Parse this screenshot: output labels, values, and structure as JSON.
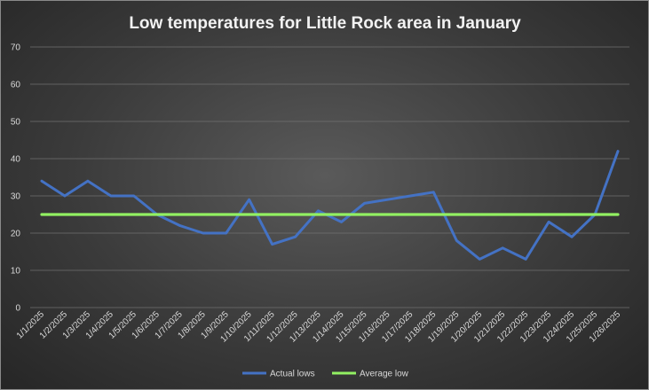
{
  "chart_data": {
    "type": "line",
    "title": "Low temperatures for Little Rock area in January",
    "xlabel": "",
    "ylabel": "",
    "ylim": [
      0,
      70
    ],
    "yticks": [
      0,
      10,
      20,
      30,
      40,
      50,
      60,
      70
    ],
    "grid": true,
    "legend": "bottom",
    "categories": [
      "1/1/2025",
      "1/2/2025",
      "1/3/2025",
      "1/4/2025",
      "1/5/2025",
      "1/6/2025",
      "1/7/2025",
      "1/8/2025",
      "1/9/2025",
      "1/10/2025",
      "1/11/2025",
      "1/12/2025",
      "1/13/2025",
      "1/14/2025",
      "1/15/2025",
      "1/16/2025",
      "1/17/2025",
      "1/18/2025",
      "1/19/2025",
      "1/20/2025",
      "1/21/2025",
      "1/22/2025",
      "1/23/2025",
      "1/24/2025",
      "1/25/2025",
      "1/26/2025"
    ],
    "series": [
      {
        "name": "Actual lows",
        "color": "#4472c4",
        "values": [
          34,
          30,
          34,
          30,
          30,
          25,
          22,
          20,
          20,
          29,
          17,
          19,
          26,
          23,
          28,
          29,
          30,
          31,
          18,
          13,
          16,
          13,
          23,
          19,
          25,
          42
        ]
      },
      {
        "name": "Average low",
        "color": "#92f062",
        "values": [
          25,
          25,
          25,
          25,
          25,
          25,
          25,
          25,
          25,
          25,
          25,
          25,
          25,
          25,
          25,
          25,
          25,
          25,
          25,
          25,
          25,
          25,
          25,
          25,
          25,
          25
        ]
      }
    ]
  }
}
